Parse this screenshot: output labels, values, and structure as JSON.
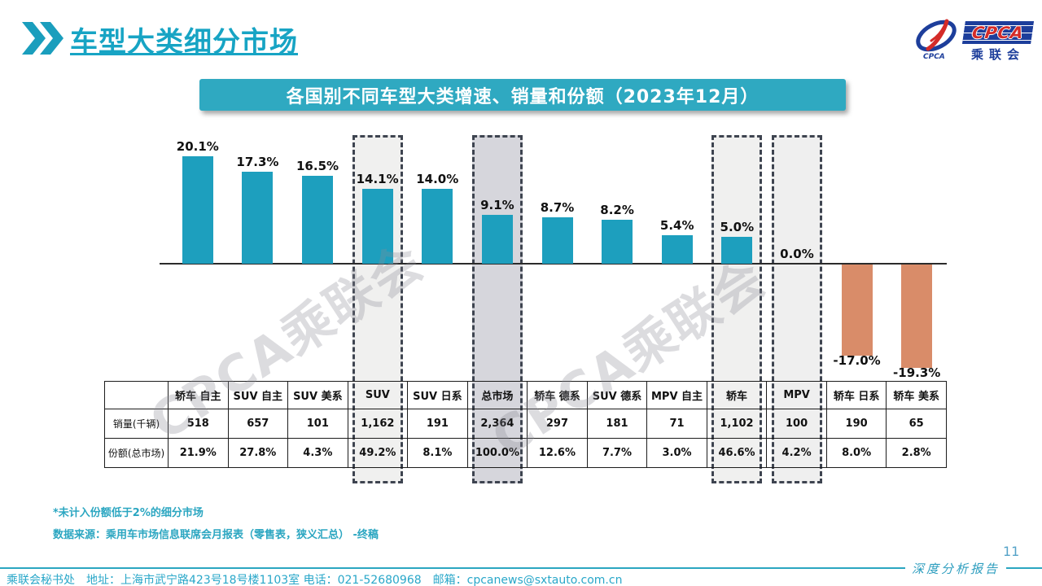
{
  "header": {
    "title": "车型大类细分市场",
    "logo": {
      "cpca_text": "CPCA",
      "sub_text": "乘联会",
      "glyph_caption": "CPCA"
    }
  },
  "banner": {
    "title": "各国别不同车型大类增速、销量和份额（2023年12月）"
  },
  "chart_data": {
    "type": "bar",
    "title": "各国别不同车型大类增速、销量和份额（2023年12月）",
    "categories": [
      "轿车 自主",
      "SUV 自主",
      "SUV 美系",
      "SUV",
      "SUV 日系",
      "总市场",
      "轿车 德系",
      "SUV 德系",
      "MPV 自主",
      "轿车",
      "MPV",
      "轿车 日系",
      "轿车 美系"
    ],
    "growth_pct": [
      20.1,
      17.3,
      16.5,
      14.1,
      14.0,
      9.1,
      8.7,
      8.2,
      5.4,
      5.0,
      0.0,
      -17.0,
      -19.3
    ],
    "growth_labels": [
      "20.1%",
      "17.3%",
      "16.5%",
      "14.1%",
      "14.0%",
      "9.1%",
      "8.7%",
      "8.2%",
      "5.4%",
      "5.0%",
      "0.0%",
      "-17.0%",
      "-19.3%"
    ],
    "ylim": [
      -21,
      22
    ],
    "grid": false,
    "bar_color_positive": "#1d9fbe",
    "bar_color_negative": "#d98c69",
    "highlighted_columns": [
      {
        "index": 3,
        "fill": "#f0f0ef"
      },
      {
        "index": 5,
        "fill": "#d6d6dc"
      },
      {
        "index": 9,
        "fill": "#f0f0ef"
      },
      {
        "index": 10,
        "fill": "#efefef"
      }
    ],
    "table": {
      "row_labels": [
        "销量(千辆)",
        "份额(总市场)"
      ],
      "rows": [
        [
          "518",
          "657",
          "101",
          "1,162",
          "191",
          "2,364",
          "297",
          "181",
          "71",
          "1,102",
          "100",
          "190",
          "65"
        ],
        [
          "21.9%",
          "27.8%",
          "4.3%",
          "49.2%",
          "8.1%",
          "100.0%",
          "12.6%",
          "7.7%",
          "3.0%",
          "46.6%",
          "4.2%",
          "8.0%",
          "2.8%"
        ]
      ]
    }
  },
  "watermark": {
    "text": "CPCA乘联会"
  },
  "notes": {
    "line1": "*未计入份额低于2%的细分市场",
    "line2": "数据来源：乘用车市场信息联席会月报表（零售表，狭义汇总） -终稿"
  },
  "footer": {
    "contact": "乘联会秘书处　地址：上海市武宁路423号18号楼1103室 电话：021-52680968　邮箱：cpcanews@sxtauto.com.cn",
    "report_label": "深度分析报告",
    "page_number": "11"
  },
  "theme": {
    "accent": "#1ca5c3",
    "banner_bg": "#2fa9c1",
    "dashed_border": "#3e4450"
  }
}
